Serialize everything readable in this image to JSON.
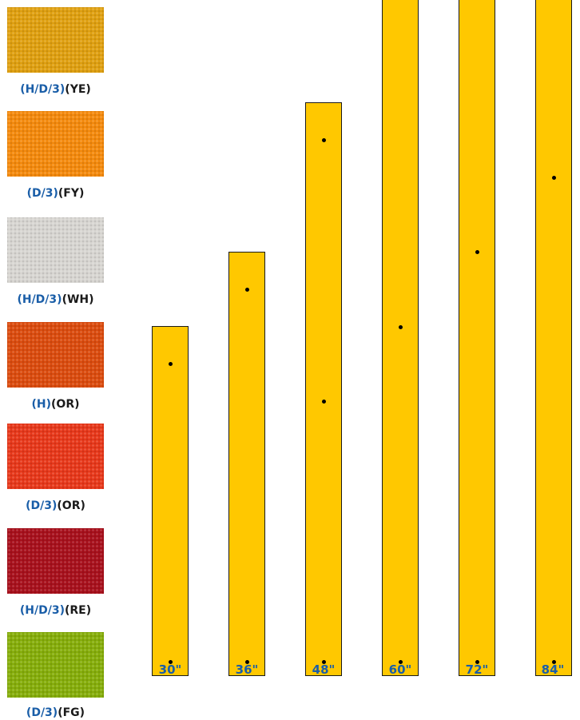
{
  "swatches": [
    {
      "prefix": "(H/D/3)",
      "color_code": "(YE)",
      "fill": "#e0a010"
    },
    {
      "prefix": "(D/3)",
      "color_code": "(FY)",
      "fill": "#f58a0c"
    },
    {
      "prefix": "(H/D/3)",
      "color_code": "(WH)",
      "fill": "#d8d6d2"
    },
    {
      "prefix": "(H)",
      "color_code": "(OR)",
      "fill": "#dc4c0e"
    },
    {
      "prefix": "(D/3)",
      "color_code": "(OR)",
      "fill": "#e8381a"
    },
    {
      "prefix": "(H/D/3)",
      "color_code": "(RE)",
      "fill": "#a8101c"
    },
    {
      "prefix": "(D/3)",
      "color_code": "(FG)",
      "fill": "#86ae0a"
    }
  ],
  "posts": [
    {
      "length": "30\"",
      "length_in": 30
    },
    {
      "length": "36\"",
      "length_in": 36
    },
    {
      "length": "48\"",
      "length_in": 48
    },
    {
      "length": "60\"",
      "length_in": 60
    },
    {
      "length": "72\"",
      "length_in": 72
    },
    {
      "length": "84\"",
      "length_in": 84
    }
  ],
  "colors": {
    "post_fill": "#ffc800",
    "prefix_text": "#1a5ea8",
    "code_text": "#1a1a1a"
  }
}
